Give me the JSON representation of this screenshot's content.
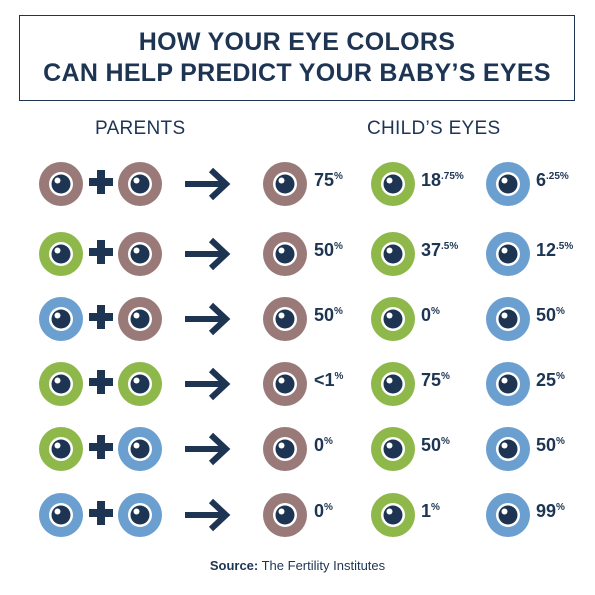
{
  "title": {
    "line1": "HOW YOUR EYE COLORS",
    "line2": "CAN HELP PREDICT YOUR BABY’S EYES"
  },
  "headers": {
    "parents": "PARENTS",
    "child": "CHILD’S EYES"
  },
  "colors": {
    "brown": "#9a7a78",
    "green": "#8fb84a",
    "blue": "#6a9fd0",
    "ink": "#1d3553"
  },
  "rows": [
    {
      "parent1": "brown",
      "parent2": "brown",
      "brown": "75",
      "brown_sup": "%",
      "green": "18",
      "green_sup": ".75%",
      "blue": "6",
      "blue_sup": ".25%"
    },
    {
      "parent1": "green",
      "parent2": "brown",
      "brown": "50",
      "brown_sup": "%",
      "green": "37",
      "green_sup": ".5%",
      "blue": "12",
      "blue_sup": ".5%"
    },
    {
      "parent1": "blue",
      "parent2": "brown",
      "brown": "50",
      "brown_sup": "%",
      "green": "0",
      "green_sup": "%",
      "blue": "50",
      "blue_sup": "%"
    },
    {
      "parent1": "green",
      "parent2": "green",
      "brown": "<1",
      "brown_sup": "%",
      "green": "75",
      "green_sup": "%",
      "blue": "25",
      "blue_sup": "%"
    },
    {
      "parent1": "green",
      "parent2": "blue",
      "brown": "0",
      "brown_sup": "%",
      "green": "50",
      "green_sup": "%",
      "blue": "50",
      "blue_sup": "%"
    },
    {
      "parent1": "blue",
      "parent2": "blue",
      "brown": "0",
      "brown_sup": "%",
      "green": "1",
      "green_sup": "%",
      "blue": "99",
      "blue_sup": "%"
    }
  ],
  "source": {
    "label": "Source:",
    "text": " The Fertility Institutes"
  }
}
